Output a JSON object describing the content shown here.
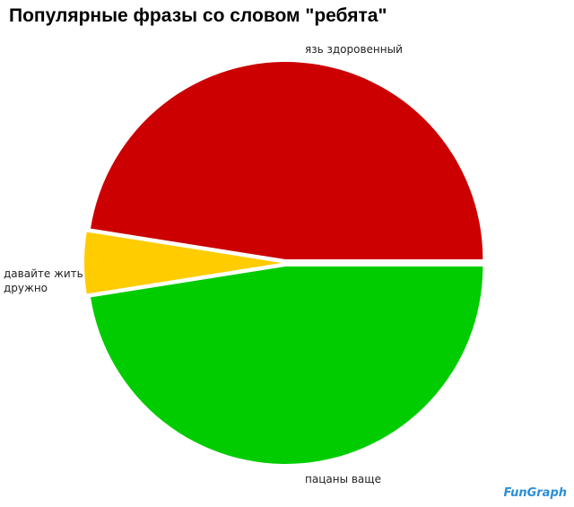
{
  "chart_data": {
    "type": "pie",
    "title": "Популярные фразы со словом \"ребята\"",
    "categories": [
      "язь здоровенный",
      "давайте жить дружно",
      "пацаны ваще"
    ],
    "values": [
      47.5,
      5,
      47.5
    ],
    "colors": [
      "#cc0000",
      "#ffcc00",
      "#00cc00"
    ]
  },
  "logo": "FunGraph"
}
